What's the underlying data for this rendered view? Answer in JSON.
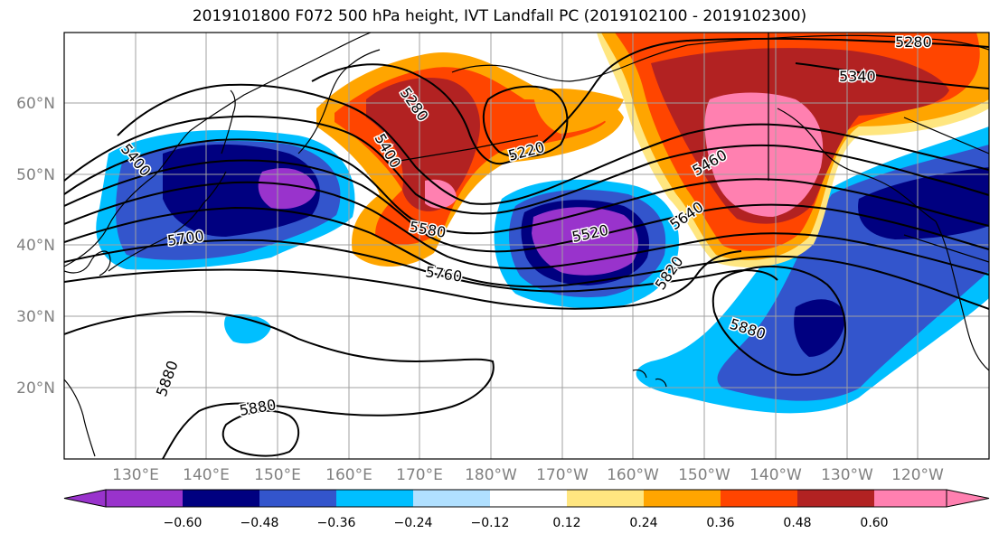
{
  "title": "2019101800 F072 500 hPa height, IVT Landfall PC (2019102100 - 2019102300)",
  "lat_ticks": [
    "60°N",
    "50°N",
    "40°N",
    "30°N",
    "20°N"
  ],
  "lon_ticks": [
    "130°E",
    "140°E",
    "150°E",
    "160°E",
    "170°E",
    "180°W",
    "170°W",
    "160°W",
    "150°W",
    "140°W",
    "130°W",
    "120°W"
  ],
  "contour_labels": [
    "5280",
    "5340",
    "5400",
    "5220",
    "5280",
    "5400",
    "5460",
    "5580",
    "5520",
    "5640",
    "5700",
    "5760",
    "5820",
    "5880",
    "5880",
    "5880"
  ],
  "colorbar": {
    "tick_labels": [
      "−0.60",
      "−0.48",
      "−0.36",
      "−0.24",
      "−0.12",
      "0.12",
      "0.24",
      "0.36",
      "0.48",
      "0.60"
    ],
    "colors": [
      "#9933cc",
      "#000080",
      "#3355cc",
      "#00bfff",
      "#b0e0ff",
      "#ffffff",
      "#ffe680",
      "#ffa500",
      "#ff4500",
      "#b22222",
      "#ff80b0"
    ]
  },
  "colors": {
    "grid": "#a0a0a0",
    "coast": "#000000",
    "contour": "#000000"
  }
}
